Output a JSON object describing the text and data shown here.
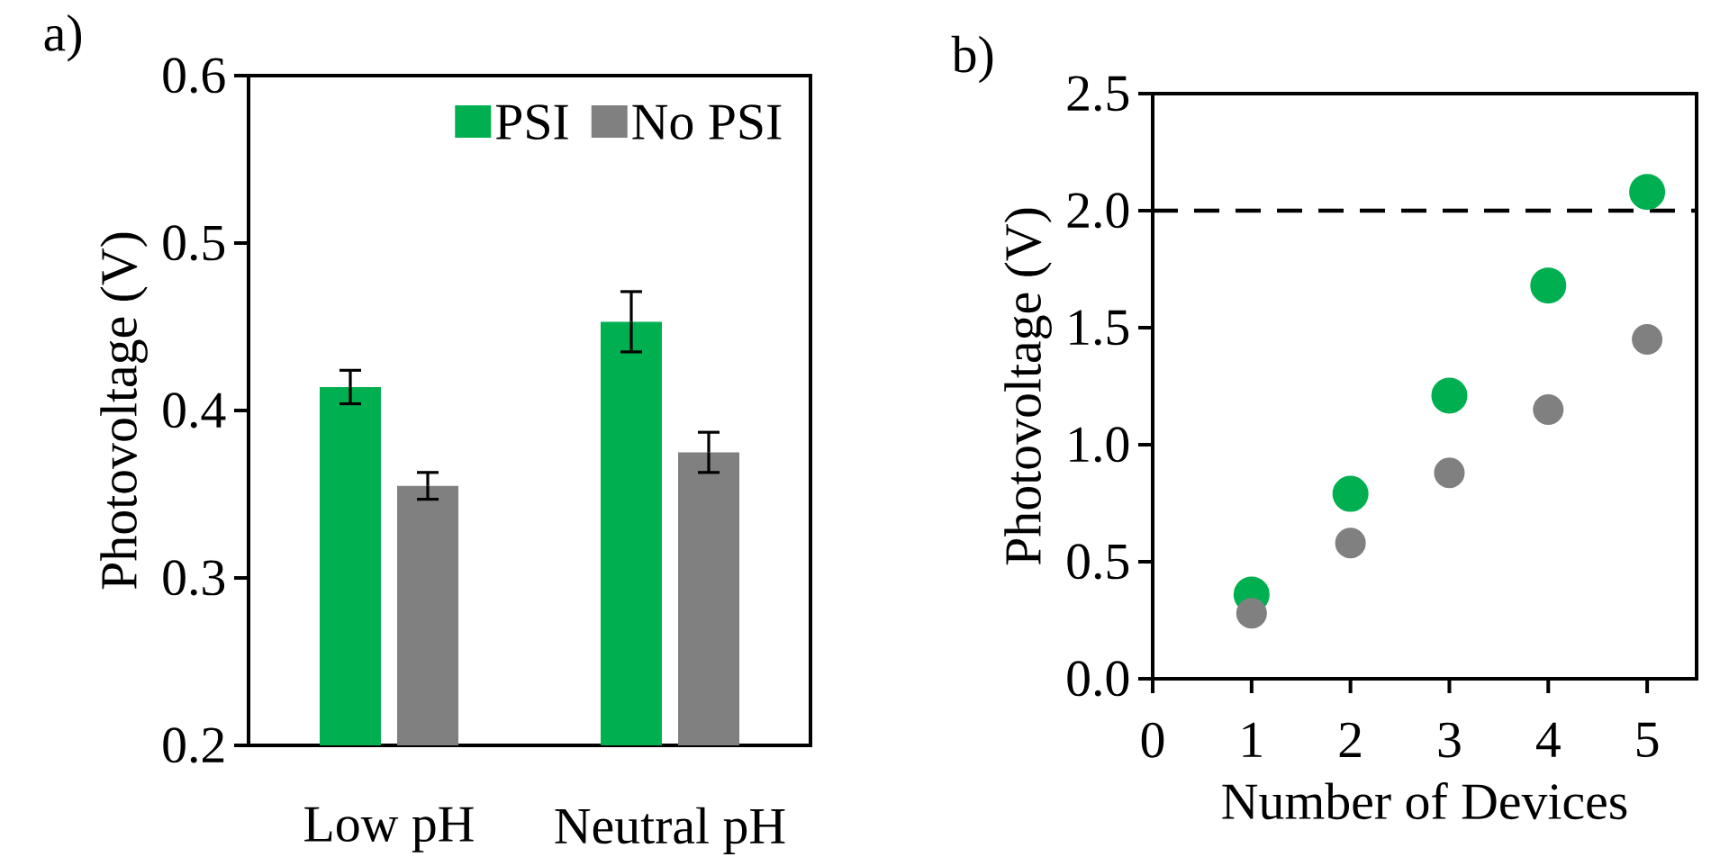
{
  "chart_data": [
    {
      "type": "bar",
      "title": "a)",
      "ylabel": "Photovoltage (V)",
      "categories": [
        "Low pH",
        "Neutral pH"
      ],
      "series": [
        {
          "name": "PSI",
          "color": "#00b050",
          "values": [
            0.414,
            0.453
          ],
          "errors": [
            0.01,
            0.018
          ]
        },
        {
          "name": "No PSI",
          "color": "#808080",
          "values": [
            0.355,
            0.375
          ],
          "errors": [
            0.008,
            0.012
          ]
        }
      ],
      "ylim": [
        0.2,
        0.6
      ],
      "yticks": [
        0.2,
        0.3,
        0.4,
        0.5,
        0.6
      ],
      "legend": "top right"
    },
    {
      "type": "scatter",
      "title": "b)",
      "xlabel": "Number of Devices",
      "ylabel": "Photovoltage (V)",
      "marker": "circle",
      "x": [
        1,
        2,
        3,
        4,
        5
      ],
      "series": [
        {
          "color": "#00b050",
          "values": [
            0.36,
            0.79,
            1.21,
            1.68,
            2.08
          ]
        },
        {
          "color": "#808080",
          "values": [
            0.28,
            0.58,
            0.88,
            1.15,
            1.45
          ]
        }
      ],
      "xlim": [
        0,
        5.5
      ],
      "xticks": [
        0,
        1,
        2,
        3,
        4,
        5
      ],
      "ylim": [
        0,
        2.5
      ],
      "yticks": [
        {
          "value": 0,
          "label": "0.0"
        },
        {
          "value": 0.5,
          "label": "0.5"
        },
        {
          "value": 1,
          "label": "1.0"
        },
        {
          "value": 1.5,
          "label": "1.5"
        },
        {
          "value": 2,
          "label": "2.0"
        },
        {
          "value": 2.5,
          "label": "2.5"
        }
      ],
      "ref_lines": [
        {
          "axis": "y",
          "value": 2,
          "color": "#000000",
          "line_style": "dashed"
        }
      ]
    }
  ]
}
